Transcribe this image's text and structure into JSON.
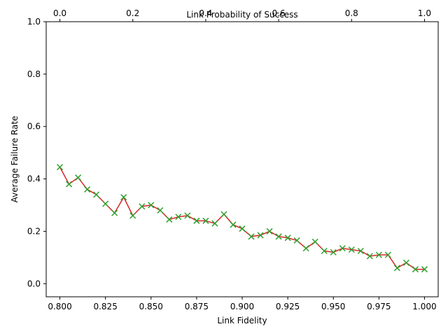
{
  "chart_data": {
    "type": "line",
    "xlabel": "Link Fidelity",
    "ylabel": "Average Failure Rate",
    "x2label": "Link Probability of Success",
    "xlim": [
      0.7925,
      1.0075
    ],
    "x2lim": [
      -0.0375,
      1.0375
    ],
    "ylim": [
      -0.05,
      1.0
    ],
    "xticks": [
      0.8,
      0.825,
      0.85,
      0.875,
      0.9,
      0.925,
      0.95,
      0.975,
      1.0
    ],
    "xtick_labels": [
      "0.800",
      "0.825",
      "0.850",
      "0.875",
      "0.900",
      "0.925",
      "0.950",
      "0.975",
      "1.000"
    ],
    "x2ticks": [
      0.0,
      0.2,
      0.4,
      0.6,
      0.8,
      1.0
    ],
    "x2tick_labels": [
      "0.0",
      "0.2",
      "0.4",
      "0.6",
      "0.8",
      "1.0"
    ],
    "yticks": [
      0.0,
      0.2,
      0.4,
      0.6,
      0.8,
      1.0
    ],
    "ytick_labels": [
      "0.0",
      "0.2",
      "0.4",
      "0.6",
      "0.8",
      "1.0"
    ],
    "grid": false,
    "line_color": "#d62728",
    "marker_color": "#2ca02c",
    "marker": "x",
    "series": [
      {
        "x": [
          0.8,
          0.805,
          0.81,
          0.815,
          0.82,
          0.825,
          0.83,
          0.835,
          0.84,
          0.845,
          0.85,
          0.855,
          0.86,
          0.865,
          0.87,
          0.875,
          0.88,
          0.885,
          0.89,
          0.895,
          0.9,
          0.905,
          0.91,
          0.915,
          0.92,
          0.925,
          0.93,
          0.935,
          0.94,
          0.945,
          0.95,
          0.955,
          0.96,
          0.965,
          0.97,
          0.975,
          0.98,
          0.985,
          0.99,
          0.995,
          1.0
        ],
        "values": [
          0.445,
          0.38,
          0.405,
          0.36,
          0.34,
          0.305,
          0.27,
          0.33,
          0.26,
          0.295,
          0.3,
          0.28,
          0.245,
          0.255,
          0.26,
          0.24,
          0.24,
          0.23,
          0.265,
          0.225,
          0.21,
          0.18,
          0.185,
          0.2,
          0.18,
          0.175,
          0.165,
          0.135,
          0.16,
          0.125,
          0.12,
          0.135,
          0.13,
          0.125,
          0.105,
          0.11,
          0.11,
          0.06,
          0.08,
          0.055,
          0.055
        ]
      }
    ]
  }
}
